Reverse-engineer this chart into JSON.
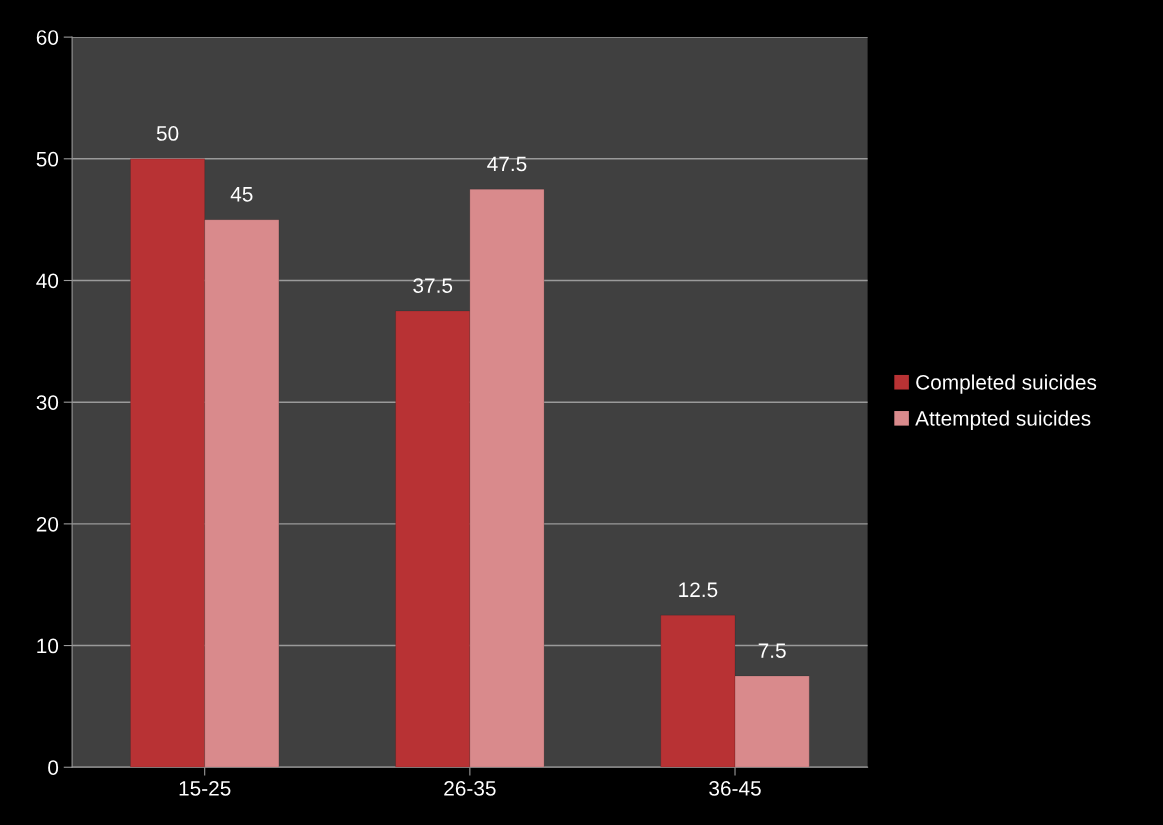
{
  "chart_data": {
    "type": "bar",
    "categories": [
      "15-25",
      "26-35",
      "36-45"
    ],
    "series": [
      {
        "name": "Completed suicides",
        "color": "#b83234",
        "values": [
          50,
          37.5,
          12.5
        ]
      },
      {
        "name": "Attempted suicides",
        "color": "#d98a8c",
        "values": [
          45,
          47.5,
          7.5
        ]
      }
    ],
    "ylim": [
      0,
      60
    ],
    "yticks": [
      0,
      10,
      20,
      30,
      40,
      50,
      60
    ],
    "grid": "y",
    "legend": "right",
    "data_labels": true
  }
}
